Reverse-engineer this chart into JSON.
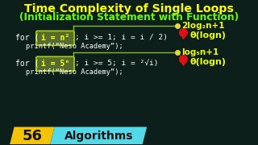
{
  "title_line1": "Time Complexity of Single Loops",
  "title_line2": "(Initialization Statement with Function)",
  "bg_color": "#0d1f1a",
  "title_color": "#ffff00",
  "subtitle_color": "#66ff00",
  "code_color": "#ffffff",
  "highlight_bg": "#556b2f",
  "highlight_border": "#aad000",
  "annotation1": "2log₂n+1",
  "annotation2": "log₅n+1",
  "theta1": "θ(logn)",
  "theta2": "θ(logn)",
  "loop1_prefix": "for (",
  "loop1_init": "i = n²",
  "loop1_suffix": "; i >= 1; i = i / 2)",
  "loop1_printf": "printf(“Neso Academy”);",
  "loop2_prefix": "for (",
  "loop2_init": "i = 5ⁿ",
  "loop2_suffix": "; i >= 5; i = ²√i)",
  "loop2_printf": "printf(“Neso Academy”);",
  "footer_num": "56",
  "footer_text": "Algorithms",
  "footer_num_bg": "#f5c400",
  "footer_text_bg": "#55d8e8",
  "footer_num_color": "#111111",
  "footer_text_color": "#111111",
  "bracket_color": "#88bb33",
  "bullet_color": "#dddd44",
  "pin_color": "#dd1111",
  "anno_color": "#eeff00",
  "theta_color": "#eeff00"
}
